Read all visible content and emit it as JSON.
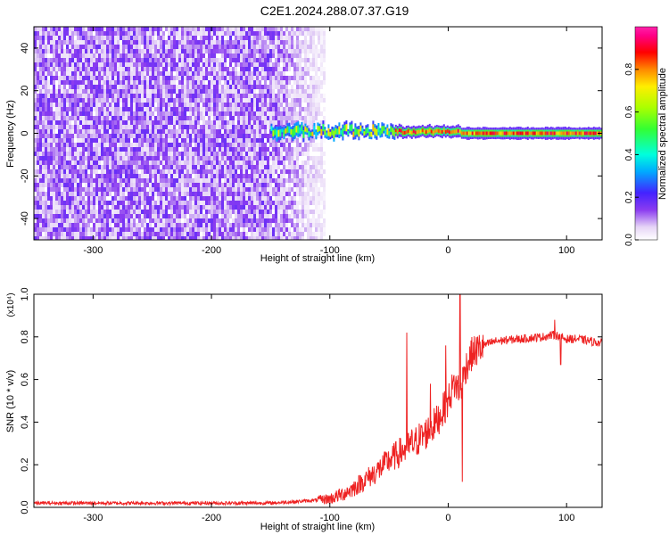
{
  "title": "C2E1.2024.288.07.37.G19",
  "colors": {
    "snr_line": "#ee2222",
    "axis": "#000000"
  },
  "chart_data": [
    {
      "type": "heatmap",
      "title": "C2E1.2024.288.07.37.G19",
      "xlabel": "Height of straight line (km)",
      "ylabel": "Frequency (Hz)",
      "xlim": [
        -350,
        130
      ],
      "ylim": [
        -50,
        50
      ],
      "x_ticks": [
        "-300",
        "-200",
        "-100",
        "0",
        "100"
      ],
      "y_ticks": [
        "-40",
        "-20",
        "0",
        "20",
        "40"
      ],
      "colorbar": {
        "label": "Normalized spectral amplitude",
        "range": [
          0,
          1
        ],
        "ticks": [
          "0.0",
          "0.2",
          "0.4",
          "0.6",
          "0.8"
        ],
        "colormap": "rainbow (white-purple-blue-cyan-green-yellow-red-magenta)"
      },
      "regions": [
        {
          "x_range": [
            -350,
            -105
          ],
          "freq_range": [
            -50,
            50
          ],
          "amplitude": 0.15,
          "description": "broadband noise"
        },
        {
          "x_range": [
            -150,
            -45
          ],
          "freq_center": 1,
          "amplitude": 0.45
        },
        {
          "x_range": [
            -45,
            130
          ],
          "freq_center": 0,
          "amplitude": 0.85
        }
      ]
    },
    {
      "type": "line",
      "xlabel": "Height of straight line (km)",
      "ylabel": "SNR (10 * v/v)",
      "y_multiplier": "(x10⁴)",
      "xlim": [
        -350,
        130
      ],
      "ylim": [
        0,
        1.0
      ],
      "x_ticks": [
        "-300",
        "-200",
        "-100",
        "0",
        "100"
      ],
      "y_ticks": [
        "0.0",
        "0.2",
        "0.4",
        "0.6",
        "0.8",
        "1.0"
      ],
      "series": [
        {
          "x": [
            -350,
            -300,
            -250,
            -200,
            -150,
            -120,
            -100,
            -90,
            -80,
            -70,
            -60,
            -50,
            -40,
            -30,
            -20,
            -10,
            -5,
            0,
            5,
            10,
            15,
            20,
            30,
            40,
            60,
            80,
            90,
            100,
            110,
            120,
            130
          ],
          "y": [
            0.02,
            0.02,
            0.02,
            0.02,
            0.02,
            0.03,
            0.04,
            0.06,
            0.09,
            0.13,
            0.17,
            0.22,
            0.26,
            0.3,
            0.34,
            0.4,
            0.45,
            0.5,
            0.58,
            0.55,
            0.66,
            0.72,
            0.76,
            0.78,
            0.79,
            0.8,
            0.81,
            0.79,
            0.79,
            0.78,
            0.77
          ],
          "spikes": [
            [
              -35,
              0.82
            ],
            [
              -15,
              0.58
            ],
            [
              -2,
              0.76
            ],
            [
              10,
              1.02
            ],
            [
              12,
              0.12
            ],
            [
              -28,
              0.35
            ],
            [
              90,
              0.88
            ],
            [
              95,
              0.67
            ]
          ]
        }
      ]
    }
  ]
}
